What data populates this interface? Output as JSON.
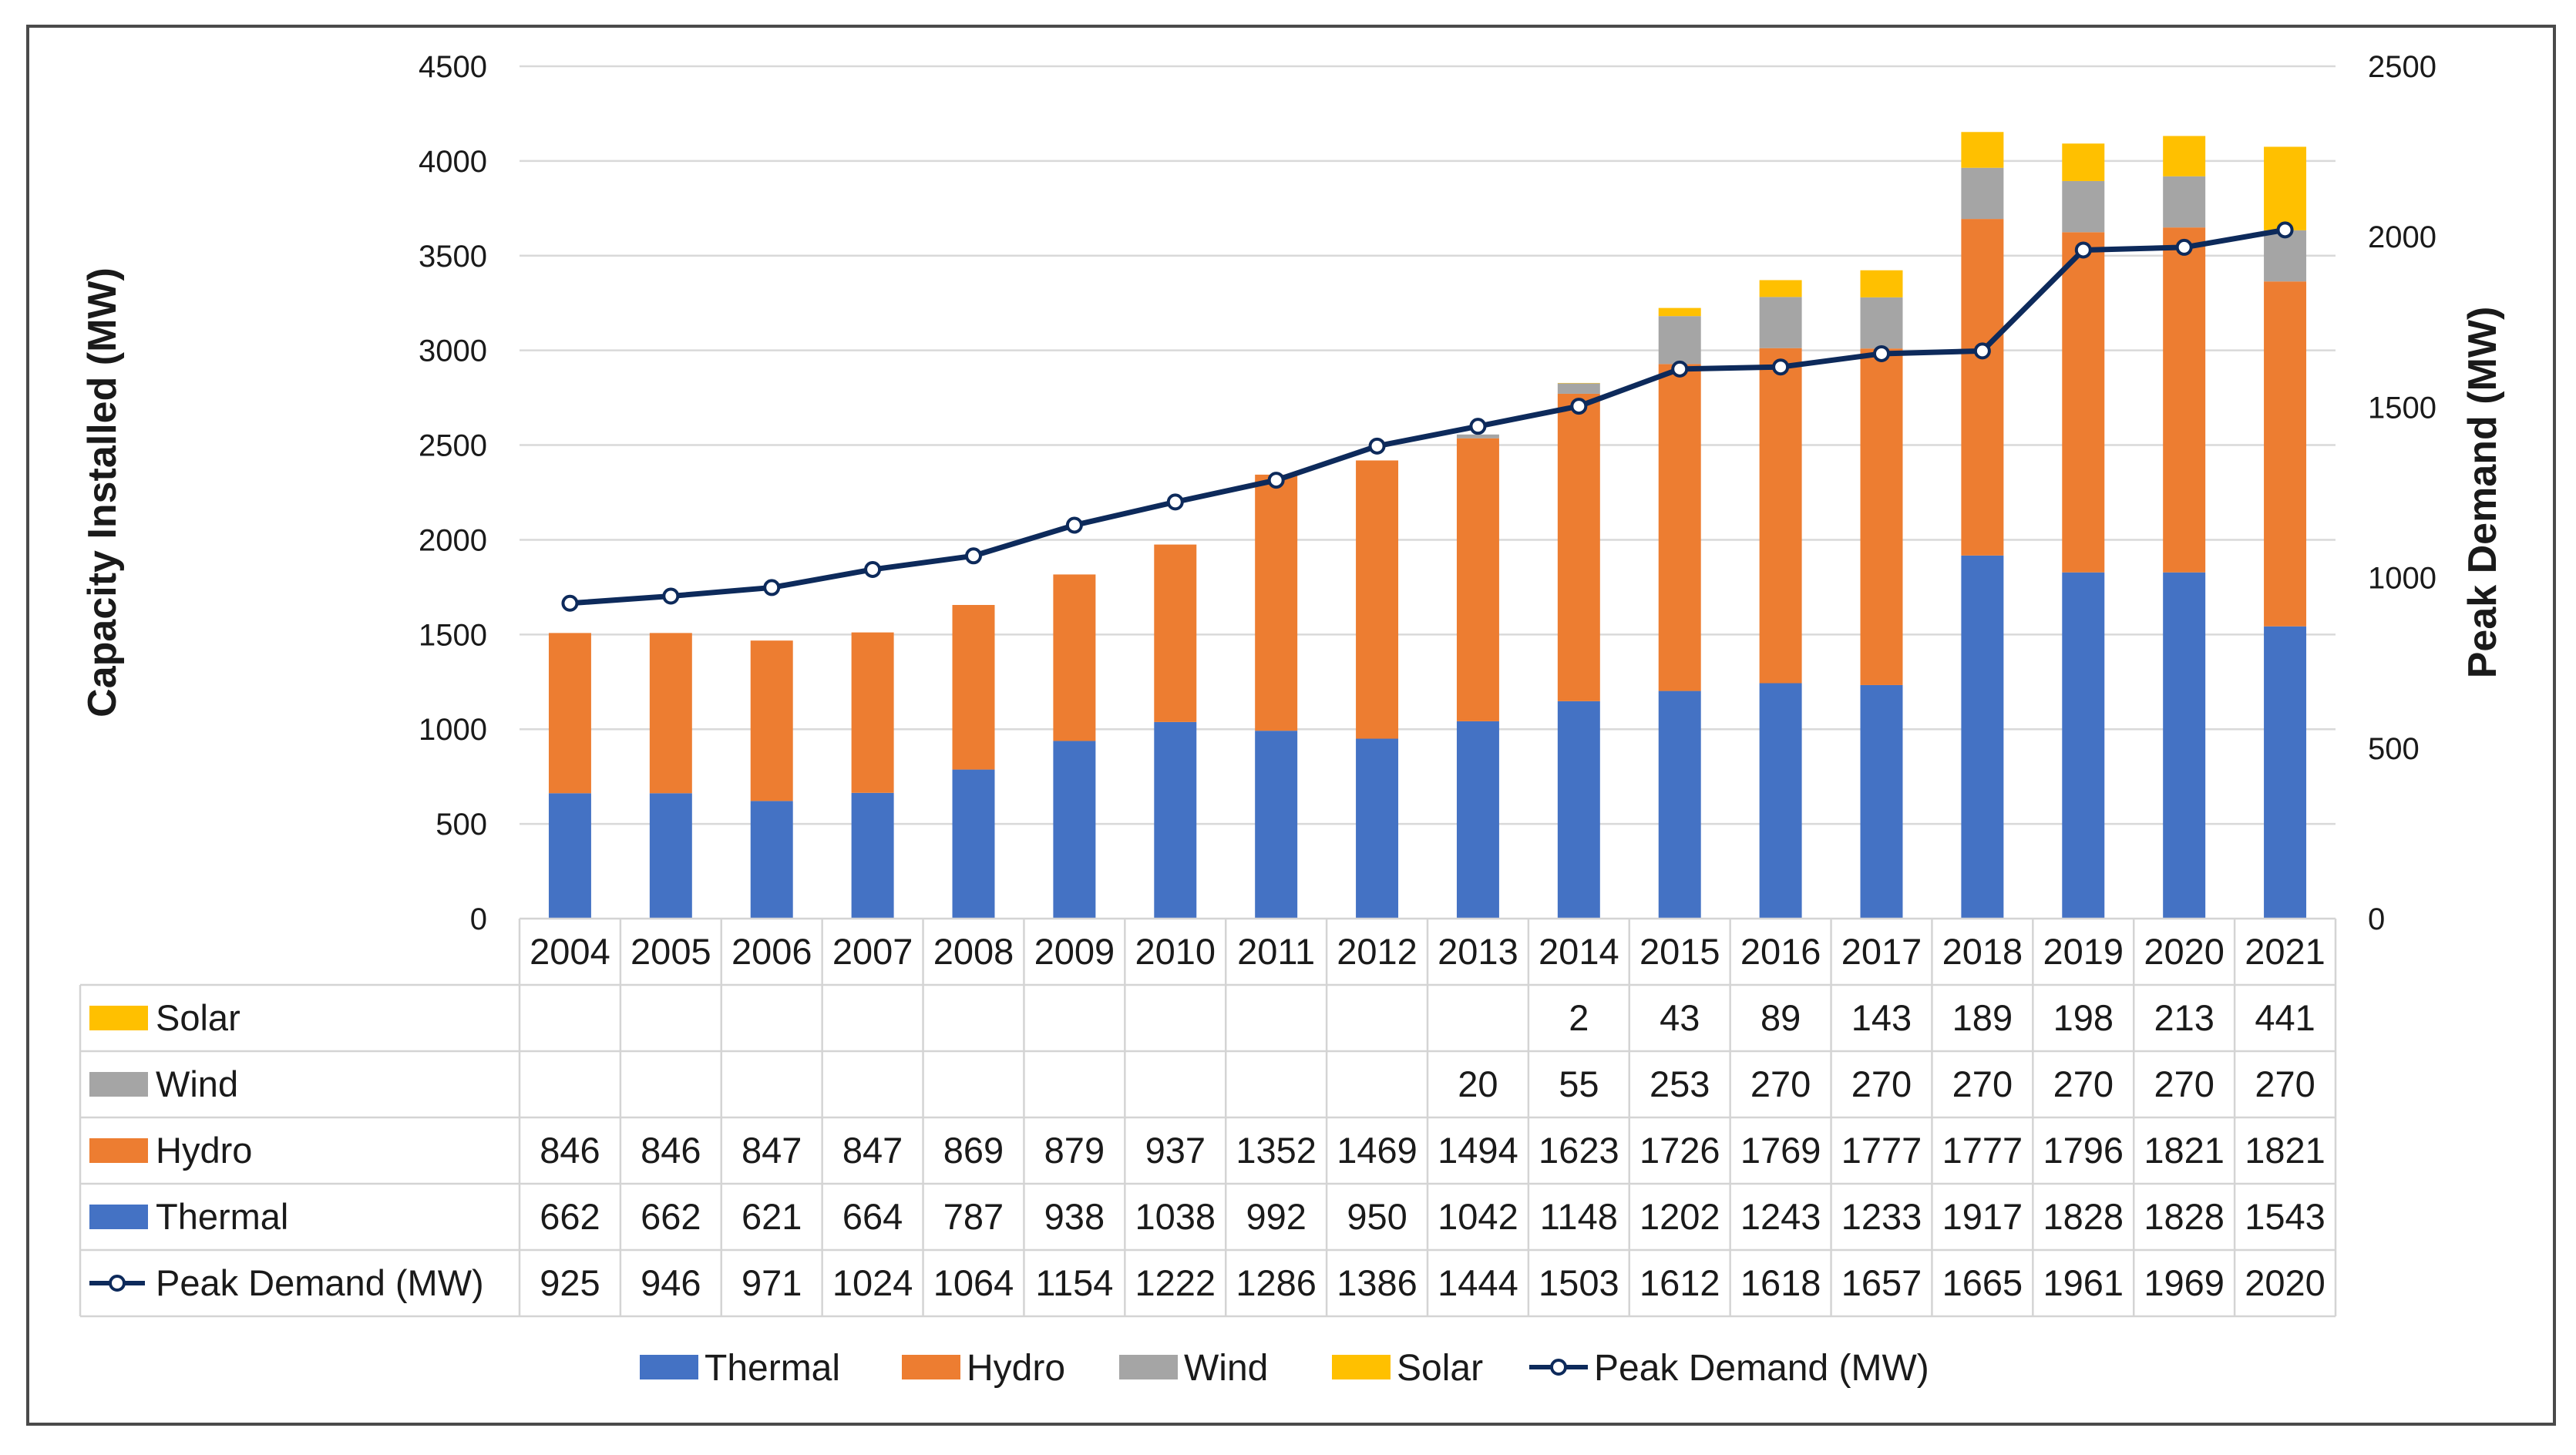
{
  "chart_data": {
    "type": "bar",
    "stacked": true,
    "categories": [
      "2004",
      "2005",
      "2006",
      "2007",
      "2008",
      "2009",
      "2010",
      "2011",
      "2012",
      "2013",
      "2014",
      "2015",
      "2016",
      "2017",
      "2018",
      "2019",
      "2020",
      "2021"
    ],
    "series": [
      {
        "name": "Thermal",
        "values": [
          662,
          662,
          621,
          664,
          787,
          938,
          1038,
          992,
          950,
          1042,
          1148,
          1202,
          1243,
          1233,
          1917,
          1828,
          1828,
          1543
        ],
        "color": "#4472C4",
        "axis": "left",
        "kind": "bar"
      },
      {
        "name": "Hydro",
        "values": [
          846,
          846,
          847,
          847,
          869,
          879,
          937,
          1352,
          1469,
          1494,
          1623,
          1726,
          1769,
          1777,
          1777,
          1796,
          1821,
          1821
        ],
        "color": "#ED7D31",
        "axis": "left",
        "kind": "bar"
      },
      {
        "name": "Wind",
        "values": [
          null,
          null,
          null,
          null,
          null,
          null,
          null,
          null,
          null,
          20,
          55,
          253,
          270,
          270,
          270,
          270,
          270,
          270
        ],
        "color": "#A5A5A5",
        "axis": "left",
        "kind": "bar"
      },
      {
        "name": "Solar",
        "values": [
          null,
          null,
          null,
          null,
          null,
          null,
          null,
          null,
          null,
          null,
          2,
          43,
          89,
          143,
          189,
          198,
          213,
          441
        ],
        "color": "#FFC000",
        "axis": "left",
        "kind": "bar"
      },
      {
        "name": "Peak Demand (MW)",
        "values": [
          925,
          946,
          971,
          1024,
          1064,
          1154,
          1222,
          1286,
          1386,
          1444,
          1503,
          1612,
          1618,
          1657,
          1665,
          1961,
          1969,
          2020
        ],
        "color": "#0D2A5B",
        "axis": "right",
        "kind": "line"
      }
    ],
    "ylabel": "Capacity Installed (MW)",
    "y2label": "Peak Demand (MW)",
    "ylim": [
      0,
      4500
    ],
    "y2lim": [
      0,
      2500
    ],
    "yticks": [
      "0",
      "500",
      "1000",
      "1500",
      "2000",
      "2500",
      "3000",
      "3500",
      "4000",
      "4500"
    ],
    "y2ticks": [
      "0",
      "500",
      "1000",
      "1500",
      "2000",
      "2500"
    ],
    "grid": true,
    "data_table": true,
    "table_rows": [
      "Solar",
      "Wind",
      "Hydro",
      "Thermal",
      "Peak Demand (MW)"
    ],
    "legend_position": "bottom",
    "legend_order": [
      "Thermal",
      "Hydro",
      "Wind",
      "Solar",
      "Peak Demand (MW)"
    ]
  }
}
